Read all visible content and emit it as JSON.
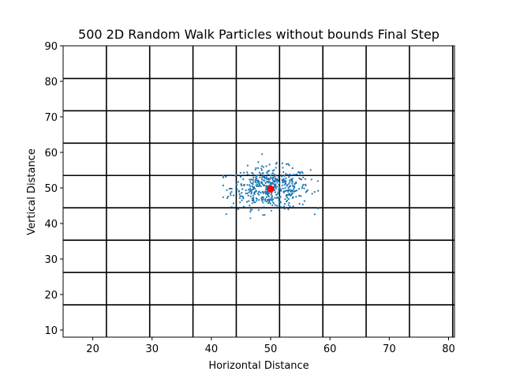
{
  "chart_data": {
    "type": "scatter",
    "title": "500 2D Random Walk Particles without bounds Final Step",
    "xlabel": "Horizontal Distance",
    "ylabel": "Vertical Distance",
    "xlim": [
      15,
      81
    ],
    "ylim": [
      8,
      90
    ],
    "xticks": [
      20,
      30,
      40,
      50,
      60,
      70,
      80
    ],
    "yticks": [
      10,
      20,
      30,
      40,
      50,
      60,
      70,
      80,
      90
    ],
    "grid": true,
    "grid_lines_x": [
      22.3,
      29.6,
      36.9,
      44.2,
      51.5,
      58.8,
      66.1,
      73.4,
      80.7
    ],
    "grid_lines_y": [
      17.1,
      26.2,
      35.3,
      44.4,
      53.5,
      62.6,
      71.7,
      80.8
    ],
    "series": [
      {
        "color": "#1f77b4",
        "marker": "point",
        "n_points": 500,
        "center": [
          50,
          50
        ],
        "spread": [
          3.3,
          2.9
        ],
        "x_extent": [
          42,
          58
        ],
        "y_extent": [
          41.5,
          60
        ]
      },
      {
        "color": "#ff0000",
        "marker": "circle",
        "points": [
          [
            50,
            49.7
          ]
        ]
      }
    ]
  }
}
